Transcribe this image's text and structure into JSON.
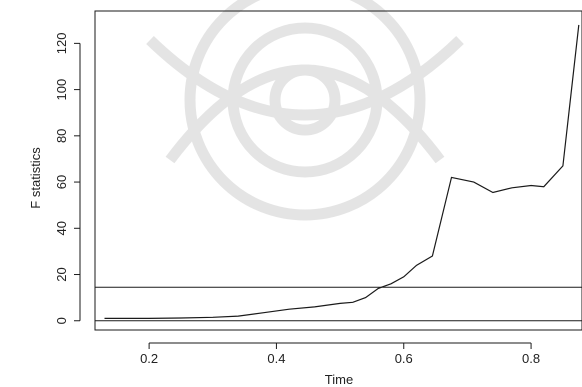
{
  "chart_data": {
    "type": "line",
    "title": "",
    "xlabel": "Time",
    "ylabel": "F statistics",
    "xlim": [
      0.115,
      0.88
    ],
    "ylim": [
      -4,
      134
    ],
    "x_ticks": [
      0.2,
      0.4,
      0.6,
      0.8
    ],
    "x_tick_labels": [
      "0.2",
      "0.4",
      "0.6",
      "0.8"
    ],
    "y_ticks": [
      0,
      20,
      40,
      60,
      80,
      100,
      120
    ],
    "y_tick_labels": [
      "0",
      "20",
      "40",
      "60",
      "80",
      "100",
      "120"
    ],
    "grid": false,
    "legend": "none",
    "line_color": "#1a1a1a",
    "series": [
      {
        "x": [
          0.13,
          0.2,
          0.25,
          0.3,
          0.34,
          0.38,
          0.42,
          0.46,
          0.5,
          0.52,
          0.54,
          0.56,
          0.58,
          0.6,
          0.62,
          0.645,
          0.675,
          0.71,
          0.74,
          0.77,
          0.8,
          0.82,
          0.85,
          0.875
        ],
        "y": [
          1,
          1,
          1.2,
          1.5,
          2,
          3.5,
          5,
          6,
          7.5,
          8,
          10,
          14,
          16,
          19,
          24,
          28,
          62,
          60,
          55.5,
          57.5,
          58.5,
          58,
          67,
          128
        ]
      }
    ],
    "reference_lines": [
      {
        "y": 14.5
      },
      {
        "y": 0
      }
    ]
  }
}
